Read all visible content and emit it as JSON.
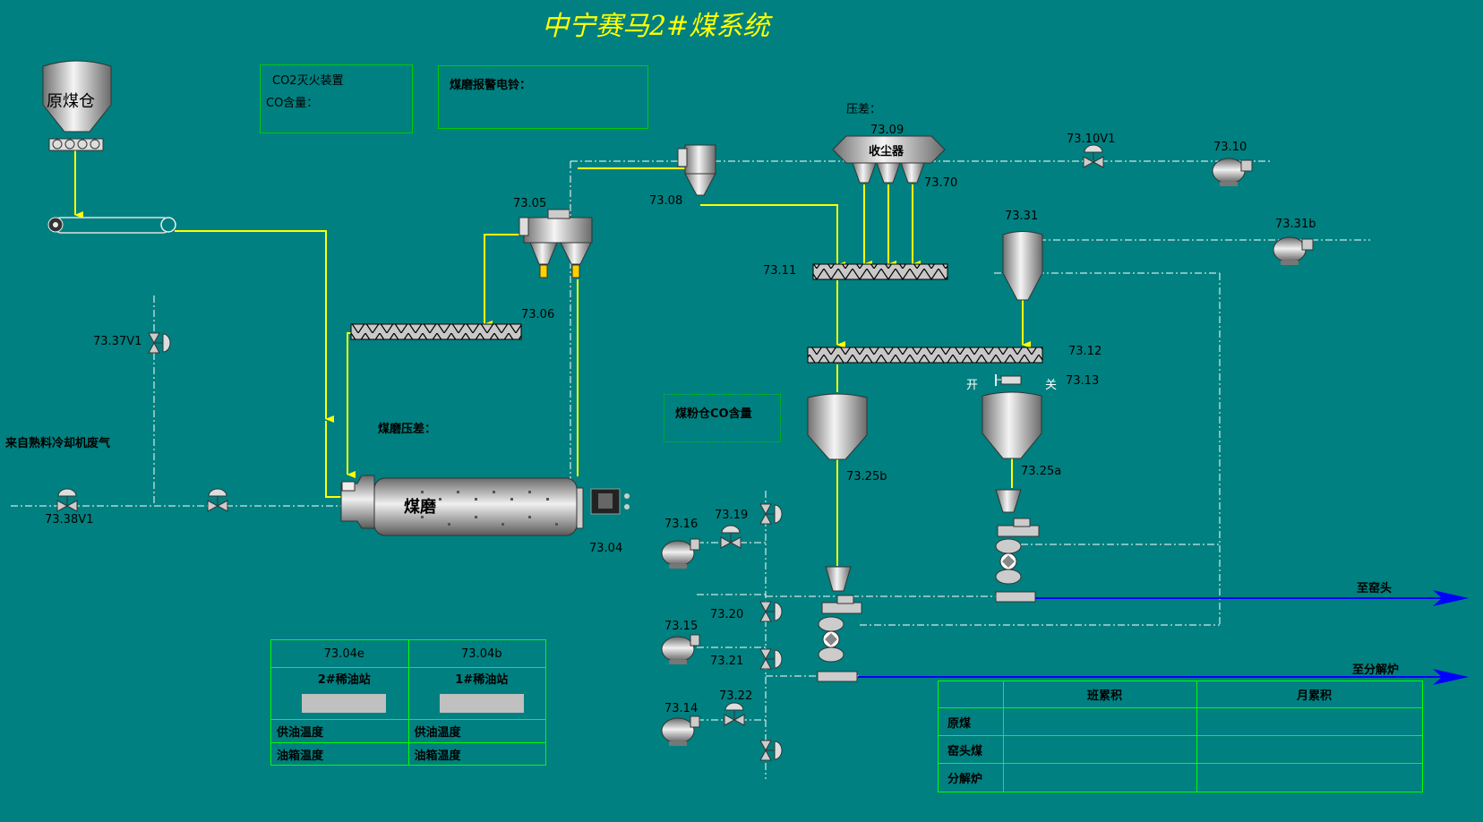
{
  "title": "中宁赛马2#煤系统",
  "panels": {
    "co2_title": "CO2灭火装置",
    "co_content": "CO含量：",
    "alarm": "煤磨报警电铃：",
    "coal_bin_co": "煤粉仓CO含量"
  },
  "labels": {
    "raw_bin": "原煤仓",
    "pressure_diff": "压差：",
    "dust_collector": "收尘器",
    "mill": "煤磨",
    "mill_pressure": "煤磨压差：",
    "clinker_gas": "来自熟料冷却机废气",
    "open": "开",
    "close": "关",
    "to_kiln_head": "至窑头",
    "to_calciner": "至分解炉"
  },
  "tags": {
    "t7309": "73.09",
    "t7370": "73.70",
    "t7308": "73.08",
    "t7310v1": "73.10V1",
    "t7310": "73.10",
    "t7305": "73.05",
    "t7331": "73.31",
    "t7331b": "73.31b",
    "t7311": "73.11",
    "t7306": "73.06",
    "t7337v1": "73.37V1",
    "t7312": "73.12",
    "t7313": "73.13",
    "t7325b": "73.25b",
    "t7325a": "73.25a",
    "t7338v1": "73.38V1",
    "t7304": "73.04",
    "t7316": "73.16",
    "t7319": "73.19",
    "t7315": "73.15",
    "t7320": "73.20",
    "t7321": "73.21",
    "t7314": "73.14",
    "t7322": "73.22"
  },
  "oil_station": {
    "col1_tag": "73.04e",
    "col2_tag": "73.04b",
    "col1_name": "2#稀油站",
    "col2_name": "1#稀油站",
    "supply_temp": "供油温度",
    "tank_temp": "油箱温度"
  },
  "totals": {
    "col_shift": "班累积",
    "col_month": "月累积",
    "row_raw": "原煤",
    "row_kiln": "窑头煤",
    "row_calciner": "分解炉"
  },
  "colors": {
    "background": "#008080",
    "flow": "#ffff00",
    "output": "#0000ff",
    "frame": "#00ff00"
  }
}
